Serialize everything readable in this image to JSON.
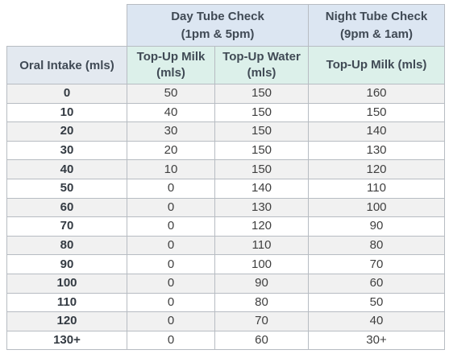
{
  "table": {
    "groups": [
      {
        "title": "Day Tube Check",
        "subtitle": "(1pm & 5pm)"
      },
      {
        "title": "Night Tube Check",
        "subtitle": "(9pm & 1am)"
      }
    ],
    "columns": [
      "Oral Intake (mls)",
      "Top-Up Milk (mls)",
      "Top-Up Water (mls)",
      "Top-Up Milk (mls)"
    ],
    "rows": [
      [
        0,
        50,
        150,
        160
      ],
      [
        10,
        40,
        150,
        150
      ],
      [
        20,
        30,
        150,
        140
      ],
      [
        30,
        20,
        150,
        130
      ],
      [
        40,
        10,
        150,
        120
      ],
      [
        50,
        0,
        140,
        110
      ],
      [
        60,
        0,
        130,
        100
      ],
      [
        70,
        0,
        120,
        90
      ],
      [
        80,
        0,
        110,
        80
      ],
      [
        90,
        0,
        100,
        70
      ],
      [
        100,
        0,
        90,
        60
      ],
      [
        110,
        0,
        80,
        50
      ],
      [
        120,
        0,
        70,
        40
      ],
      [
        "130+",
        0,
        60,
        "30+"
      ]
    ]
  }
}
